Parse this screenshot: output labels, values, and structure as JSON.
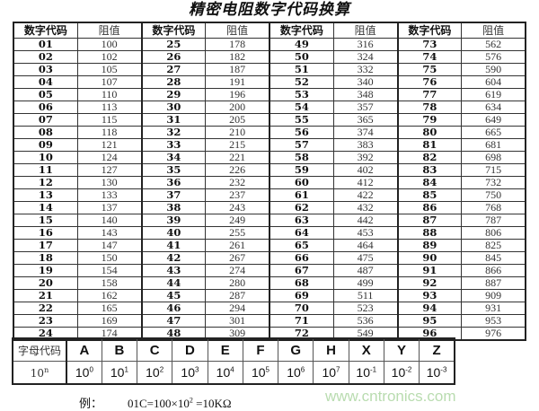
{
  "title": "精密电阻数字代码换算",
  "header": {
    "code": "数字代码",
    "value": "阻值"
  },
  "codes": [
    [
      "01",
      "100"
    ],
    [
      "02",
      "102"
    ],
    [
      "03",
      "105"
    ],
    [
      "04",
      "107"
    ],
    [
      "05",
      "110"
    ],
    [
      "06",
      "113"
    ],
    [
      "07",
      "115"
    ],
    [
      "08",
      "118"
    ],
    [
      "09",
      "121"
    ],
    [
      "10",
      "124"
    ],
    [
      "11",
      "127"
    ],
    [
      "12",
      "130"
    ],
    [
      "13",
      "133"
    ],
    [
      "14",
      "137"
    ],
    [
      "15",
      "140"
    ],
    [
      "16",
      "143"
    ],
    [
      "17",
      "147"
    ],
    [
      "18",
      "150"
    ],
    [
      "19",
      "154"
    ],
    [
      "20",
      "158"
    ],
    [
      "21",
      "162"
    ],
    [
      "22",
      "165"
    ],
    [
      "23",
      "169"
    ],
    [
      "24",
      "174"
    ],
    [
      "25",
      "178"
    ],
    [
      "26",
      "182"
    ],
    [
      "27",
      "187"
    ],
    [
      "28",
      "191"
    ],
    [
      "29",
      "196"
    ],
    [
      "30",
      "200"
    ],
    [
      "31",
      "205"
    ],
    [
      "32",
      "210"
    ],
    [
      "33",
      "215"
    ],
    [
      "34",
      "221"
    ],
    [
      "35",
      "226"
    ],
    [
      "36",
      "232"
    ],
    [
      "37",
      "237"
    ],
    [
      "38",
      "243"
    ],
    [
      "39",
      "249"
    ],
    [
      "40",
      "255"
    ],
    [
      "41",
      "261"
    ],
    [
      "42",
      "267"
    ],
    [
      "43",
      "274"
    ],
    [
      "44",
      "280"
    ],
    [
      "45",
      "287"
    ],
    [
      "46",
      "294"
    ],
    [
      "47",
      "301"
    ],
    [
      "48",
      "309"
    ],
    [
      "49",
      "316"
    ],
    [
      "50",
      "324"
    ],
    [
      "51",
      "332"
    ],
    [
      "52",
      "340"
    ],
    [
      "53",
      "348"
    ],
    [
      "54",
      "357"
    ],
    [
      "55",
      "365"
    ],
    [
      "56",
      "374"
    ],
    [
      "57",
      "383"
    ],
    [
      "58",
      "392"
    ],
    [
      "59",
      "402"
    ],
    [
      "60",
      "412"
    ],
    [
      "61",
      "422"
    ],
    [
      "62",
      "432"
    ],
    [
      "63",
      "442"
    ],
    [
      "64",
      "453"
    ],
    [
      "65",
      "464"
    ],
    [
      "66",
      "475"
    ],
    [
      "67",
      "487"
    ],
    [
      "68",
      "499"
    ],
    [
      "69",
      "511"
    ],
    [
      "70",
      "523"
    ],
    [
      "71",
      "536"
    ],
    [
      "72",
      "549"
    ],
    [
      "73",
      "562"
    ],
    [
      "74",
      "576"
    ],
    [
      "75",
      "590"
    ],
    [
      "76",
      "604"
    ],
    [
      "77",
      "619"
    ],
    [
      "78",
      "634"
    ],
    [
      "79",
      "649"
    ],
    [
      "80",
      "665"
    ],
    [
      "81",
      "681"
    ],
    [
      "82",
      "698"
    ],
    [
      "83",
      "715"
    ],
    [
      "84",
      "732"
    ],
    [
      "85",
      "750"
    ],
    [
      "86",
      "768"
    ],
    [
      "87",
      "787"
    ],
    [
      "88",
      "806"
    ],
    [
      "89",
      "825"
    ],
    [
      "90",
      "845"
    ],
    [
      "91",
      "866"
    ],
    [
      "92",
      "887"
    ],
    [
      "93",
      "909"
    ],
    [
      "94",
      "931"
    ],
    [
      "95",
      "953"
    ],
    [
      "96",
      "976"
    ]
  ],
  "multiplier": {
    "letter_label": "字母代码",
    "power_label_base": "10",
    "power_label_exp": "n",
    "items": [
      {
        "letter": "A",
        "base": "10",
        "exp": "0"
      },
      {
        "letter": "B",
        "base": "10",
        "exp": "1"
      },
      {
        "letter": "C",
        "base": "10",
        "exp": "2"
      },
      {
        "letter": "D",
        "base": "10",
        "exp": "3"
      },
      {
        "letter": "E",
        "base": "10",
        "exp": "4"
      },
      {
        "letter": "F",
        "base": "10",
        "exp": "5"
      },
      {
        "letter": "G",
        "base": "10",
        "exp": "6"
      },
      {
        "letter": "H",
        "base": "10",
        "exp": "7"
      },
      {
        "letter": "X",
        "base": "10",
        "exp": "-1"
      },
      {
        "letter": "Y",
        "base": "10",
        "exp": "-2"
      },
      {
        "letter": "Z",
        "base": "10",
        "exp": "-3"
      }
    ]
  },
  "example": {
    "label": "例：",
    "expr": "01C=100×10",
    "exp": "2",
    "result": " =10KΩ"
  },
  "watermark": "www.cntronics.com"
}
